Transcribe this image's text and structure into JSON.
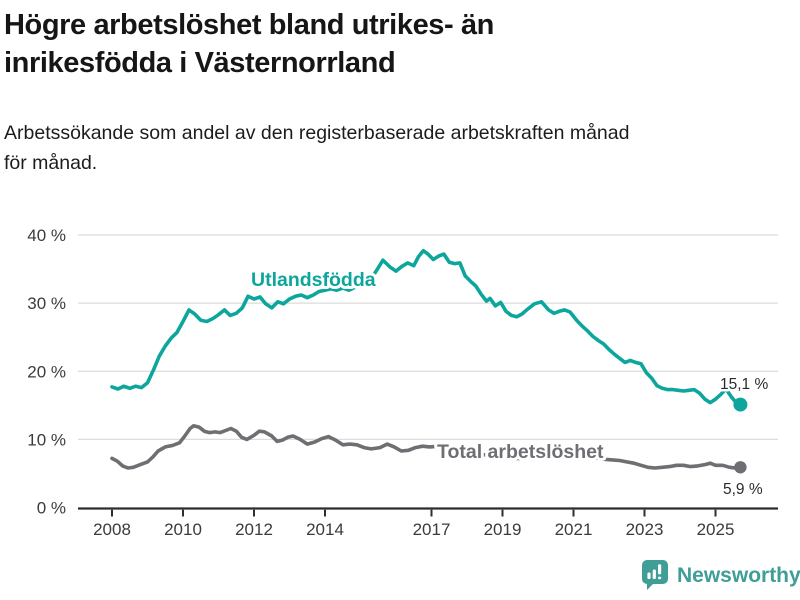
{
  "header": {
    "title_line1": "Högre arbetslöshet bland utrikes- än",
    "title_line2": "inrikesfödda i Västernorrland",
    "subtitle_line1": "Arbetssökande som andel av den registerbaserade arbetskraften månad",
    "subtitle_line2": "för månad."
  },
  "footer": {
    "brand": "Newsworthy",
    "brand_color": "#3f9e96",
    "logo_icon": "bar-chart-speech-bubble"
  },
  "chart_data": {
    "type": "line",
    "title": "Högre arbetslöshet bland utrikes- än inrikesfödda i Västernorrland",
    "subtitle": "Arbetssökande som andel av den registerbaserade arbetskraften månad för månad.",
    "grid": true,
    "legend_position": "inline-labels",
    "x_axis": {
      "label": "",
      "tick_years": [
        2008,
        2010,
        2012,
        2014,
        2017,
        2019,
        2021,
        2023,
        2025
      ],
      "range": [
        2008,
        2025.7
      ]
    },
    "y_axis": {
      "label": "",
      "unit": "%",
      "ticks": [
        0,
        10,
        20,
        30,
        40
      ],
      "tick_labels": [
        "0 %",
        "10 %",
        "20 %",
        "30 %",
        "40 %"
      ],
      "ylim": [
        0,
        42
      ]
    },
    "series": [
      {
        "name": "Utlandsfödda",
        "color": "#0da69c",
        "end_value": 15.1,
        "end_label": "15,1 %",
        "points": [
          [
            2008.0,
            17.7
          ],
          [
            2008.17,
            17.4
          ],
          [
            2008.33,
            17.8
          ],
          [
            2008.5,
            17.5
          ],
          [
            2008.67,
            17.8
          ],
          [
            2008.83,
            17.6
          ],
          [
            2009.0,
            18.3
          ],
          [
            2009.17,
            20.2
          ],
          [
            2009.33,
            22.2
          ],
          [
            2009.5,
            23.7
          ],
          [
            2009.67,
            24.9
          ],
          [
            2009.83,
            25.7
          ],
          [
            2010.0,
            27.3
          ],
          [
            2010.17,
            29.0
          ],
          [
            2010.33,
            28.4
          ],
          [
            2010.5,
            27.5
          ],
          [
            2010.67,
            27.3
          ],
          [
            2010.83,
            27.7
          ],
          [
            2011.0,
            28.3
          ],
          [
            2011.17,
            29.0
          ],
          [
            2011.33,
            28.2
          ],
          [
            2011.5,
            28.5
          ],
          [
            2011.67,
            29.3
          ],
          [
            2011.83,
            31.0
          ],
          [
            2012.0,
            30.6
          ],
          [
            2012.17,
            30.9
          ],
          [
            2012.33,
            29.9
          ],
          [
            2012.5,
            29.3
          ],
          [
            2012.67,
            30.2
          ],
          [
            2012.83,
            29.9
          ],
          [
            2013.0,
            30.6
          ],
          [
            2013.17,
            31.0
          ],
          [
            2013.33,
            31.2
          ],
          [
            2013.5,
            30.8
          ],
          [
            2013.67,
            31.2
          ],
          [
            2013.83,
            31.7
          ],
          [
            2014.0,
            31.9
          ],
          [
            2014.17,
            32.1
          ],
          [
            2014.33,
            31.9
          ],
          [
            2014.5,
            32.2
          ],
          [
            2014.67,
            31.9
          ],
          [
            2014.83,
            32.3
          ],
          [
            2015.0,
            32.6
          ],
          [
            2015.17,
            33.2
          ],
          [
            2015.33,
            33.8
          ],
          [
            2015.5,
            35.2
          ],
          [
            2015.63,
            36.3
          ],
          [
            2015.83,
            35.3
          ],
          [
            2016.0,
            34.7
          ],
          [
            2016.17,
            35.4
          ],
          [
            2016.33,
            35.9
          ],
          [
            2016.5,
            35.5
          ],
          [
            2016.63,
            36.8
          ],
          [
            2016.77,
            37.7
          ],
          [
            2016.9,
            37.2
          ],
          [
            2017.05,
            36.4
          ],
          [
            2017.2,
            36.9
          ],
          [
            2017.35,
            37.2
          ],
          [
            2017.5,
            36.0
          ],
          [
            2017.65,
            35.8
          ],
          [
            2017.8,
            35.9
          ],
          [
            2017.95,
            34.0
          ],
          [
            2018.1,
            33.2
          ],
          [
            2018.25,
            32.5
          ],
          [
            2018.4,
            31.3
          ],
          [
            2018.55,
            30.3
          ],
          [
            2018.65,
            30.7
          ],
          [
            2018.8,
            29.6
          ],
          [
            2018.95,
            30.1
          ],
          [
            2019.1,
            28.8
          ],
          [
            2019.25,
            28.2
          ],
          [
            2019.4,
            28.0
          ],
          [
            2019.55,
            28.4
          ],
          [
            2019.7,
            29.1
          ],
          [
            2019.9,
            29.9
          ],
          [
            2020.1,
            30.2
          ],
          [
            2020.3,
            29.0
          ],
          [
            2020.45,
            28.5
          ],
          [
            2020.6,
            28.8
          ],
          [
            2020.75,
            29.0
          ],
          [
            2020.9,
            28.7
          ],
          [
            2021.1,
            27.4
          ],
          [
            2021.25,
            26.6
          ],
          [
            2021.4,
            25.9
          ],
          [
            2021.55,
            25.1
          ],
          [
            2021.7,
            24.5
          ],
          [
            2021.85,
            24.0
          ],
          [
            2022.0,
            23.2
          ],
          [
            2022.15,
            22.5
          ],
          [
            2022.3,
            21.9
          ],
          [
            2022.45,
            21.3
          ],
          [
            2022.6,
            21.6
          ],
          [
            2022.75,
            21.3
          ],
          [
            2022.9,
            21.1
          ],
          [
            2023.05,
            19.8
          ],
          [
            2023.2,
            19.0
          ],
          [
            2023.35,
            17.9
          ],
          [
            2023.5,
            17.5
          ],
          [
            2023.65,
            17.3
          ],
          [
            2023.8,
            17.3
          ],
          [
            2023.95,
            17.2
          ],
          [
            2024.1,
            17.1
          ],
          [
            2024.25,
            17.2
          ],
          [
            2024.4,
            17.3
          ],
          [
            2024.55,
            16.8
          ],
          [
            2024.7,
            15.9
          ],
          [
            2024.85,
            15.4
          ],
          [
            2025.0,
            15.9
          ],
          [
            2025.15,
            16.6
          ],
          [
            2025.3,
            17.4
          ],
          [
            2025.45,
            16.2
          ],
          [
            2025.6,
            15.3
          ],
          [
            2025.7,
            15.1
          ]
        ]
      },
      {
        "name": "Total arbetslöshet",
        "color": "#6e6e73",
        "end_value": 5.9,
        "end_label": "5,9 %",
        "points": [
          [
            2008.0,
            7.2
          ],
          [
            2008.15,
            6.8
          ],
          [
            2008.3,
            6.1
          ],
          [
            2008.45,
            5.8
          ],
          [
            2008.6,
            5.9
          ],
          [
            2008.8,
            6.3
          ],
          [
            2009.0,
            6.7
          ],
          [
            2009.15,
            7.4
          ],
          [
            2009.3,
            8.3
          ],
          [
            2009.5,
            8.9
          ],
          [
            2009.7,
            9.1
          ],
          [
            2009.9,
            9.5
          ],
          [
            2010.05,
            10.5
          ],
          [
            2010.2,
            11.6
          ],
          [
            2010.3,
            12.0
          ],
          [
            2010.45,
            11.8
          ],
          [
            2010.6,
            11.2
          ],
          [
            2010.75,
            11.0
          ],
          [
            2010.9,
            11.1
          ],
          [
            2011.05,
            11.0
          ],
          [
            2011.2,
            11.3
          ],
          [
            2011.35,
            11.6
          ],
          [
            2011.5,
            11.2
          ],
          [
            2011.65,
            10.3
          ],
          [
            2011.8,
            10.0
          ],
          [
            2012.0,
            10.6
          ],
          [
            2012.15,
            11.2
          ],
          [
            2012.3,
            11.1
          ],
          [
            2012.5,
            10.5
          ],
          [
            2012.65,
            9.7
          ],
          [
            2012.8,
            9.9
          ],
          [
            2012.95,
            10.3
          ],
          [
            2013.1,
            10.5
          ],
          [
            2013.3,
            10.0
          ],
          [
            2013.5,
            9.3
          ],
          [
            2013.7,
            9.6
          ],
          [
            2013.9,
            10.1
          ],
          [
            2014.1,
            10.4
          ],
          [
            2014.3,
            9.9
          ],
          [
            2014.5,
            9.2
          ],
          [
            2014.7,
            9.3
          ],
          [
            2014.9,
            9.2
          ],
          [
            2015.1,
            8.8
          ],
          [
            2015.3,
            8.6
          ],
          [
            2015.55,
            8.8
          ],
          [
            2015.75,
            9.3
          ],
          [
            2015.95,
            8.9
          ],
          [
            2016.15,
            8.3
          ],
          [
            2016.35,
            8.4
          ],
          [
            2016.55,
            8.8
          ],
          [
            2016.75,
            9.0
          ],
          [
            2016.95,
            8.9
          ],
          [
            2017.2,
            9.0
          ],
          [
            2017.5,
            8.8
          ],
          [
            2017.8,
            8.5
          ],
          [
            2018.1,
            8.1
          ],
          [
            2018.4,
            7.8
          ],
          [
            2018.7,
            7.6
          ],
          [
            2019.0,
            7.4
          ],
          [
            2019.3,
            7.2
          ],
          [
            2019.6,
            7.2
          ],
          [
            2019.9,
            7.5
          ],
          [
            2020.2,
            8.3
          ],
          [
            2020.45,
            8.7
          ],
          [
            2020.7,
            8.5
          ],
          [
            2020.95,
            8.1
          ],
          [
            2021.2,
            7.8
          ],
          [
            2021.5,
            7.4
          ],
          [
            2021.8,
            7.1
          ],
          [
            2022.05,
            7.0
          ],
          [
            2022.3,
            6.9
          ],
          [
            2022.5,
            6.7
          ],
          [
            2022.7,
            6.5
          ],
          [
            2022.9,
            6.2
          ],
          [
            2023.1,
            5.9
          ],
          [
            2023.3,
            5.8
          ],
          [
            2023.5,
            5.9
          ],
          [
            2023.7,
            6.0
          ],
          [
            2023.9,
            6.2
          ],
          [
            2024.1,
            6.2
          ],
          [
            2024.3,
            6.0
          ],
          [
            2024.5,
            6.1
          ],
          [
            2024.7,
            6.3
          ],
          [
            2024.85,
            6.5
          ],
          [
            2025.0,
            6.2
          ],
          [
            2025.2,
            6.2
          ],
          [
            2025.4,
            5.9
          ],
          [
            2025.55,
            5.8
          ],
          [
            2025.7,
            5.9
          ]
        ]
      }
    ]
  }
}
